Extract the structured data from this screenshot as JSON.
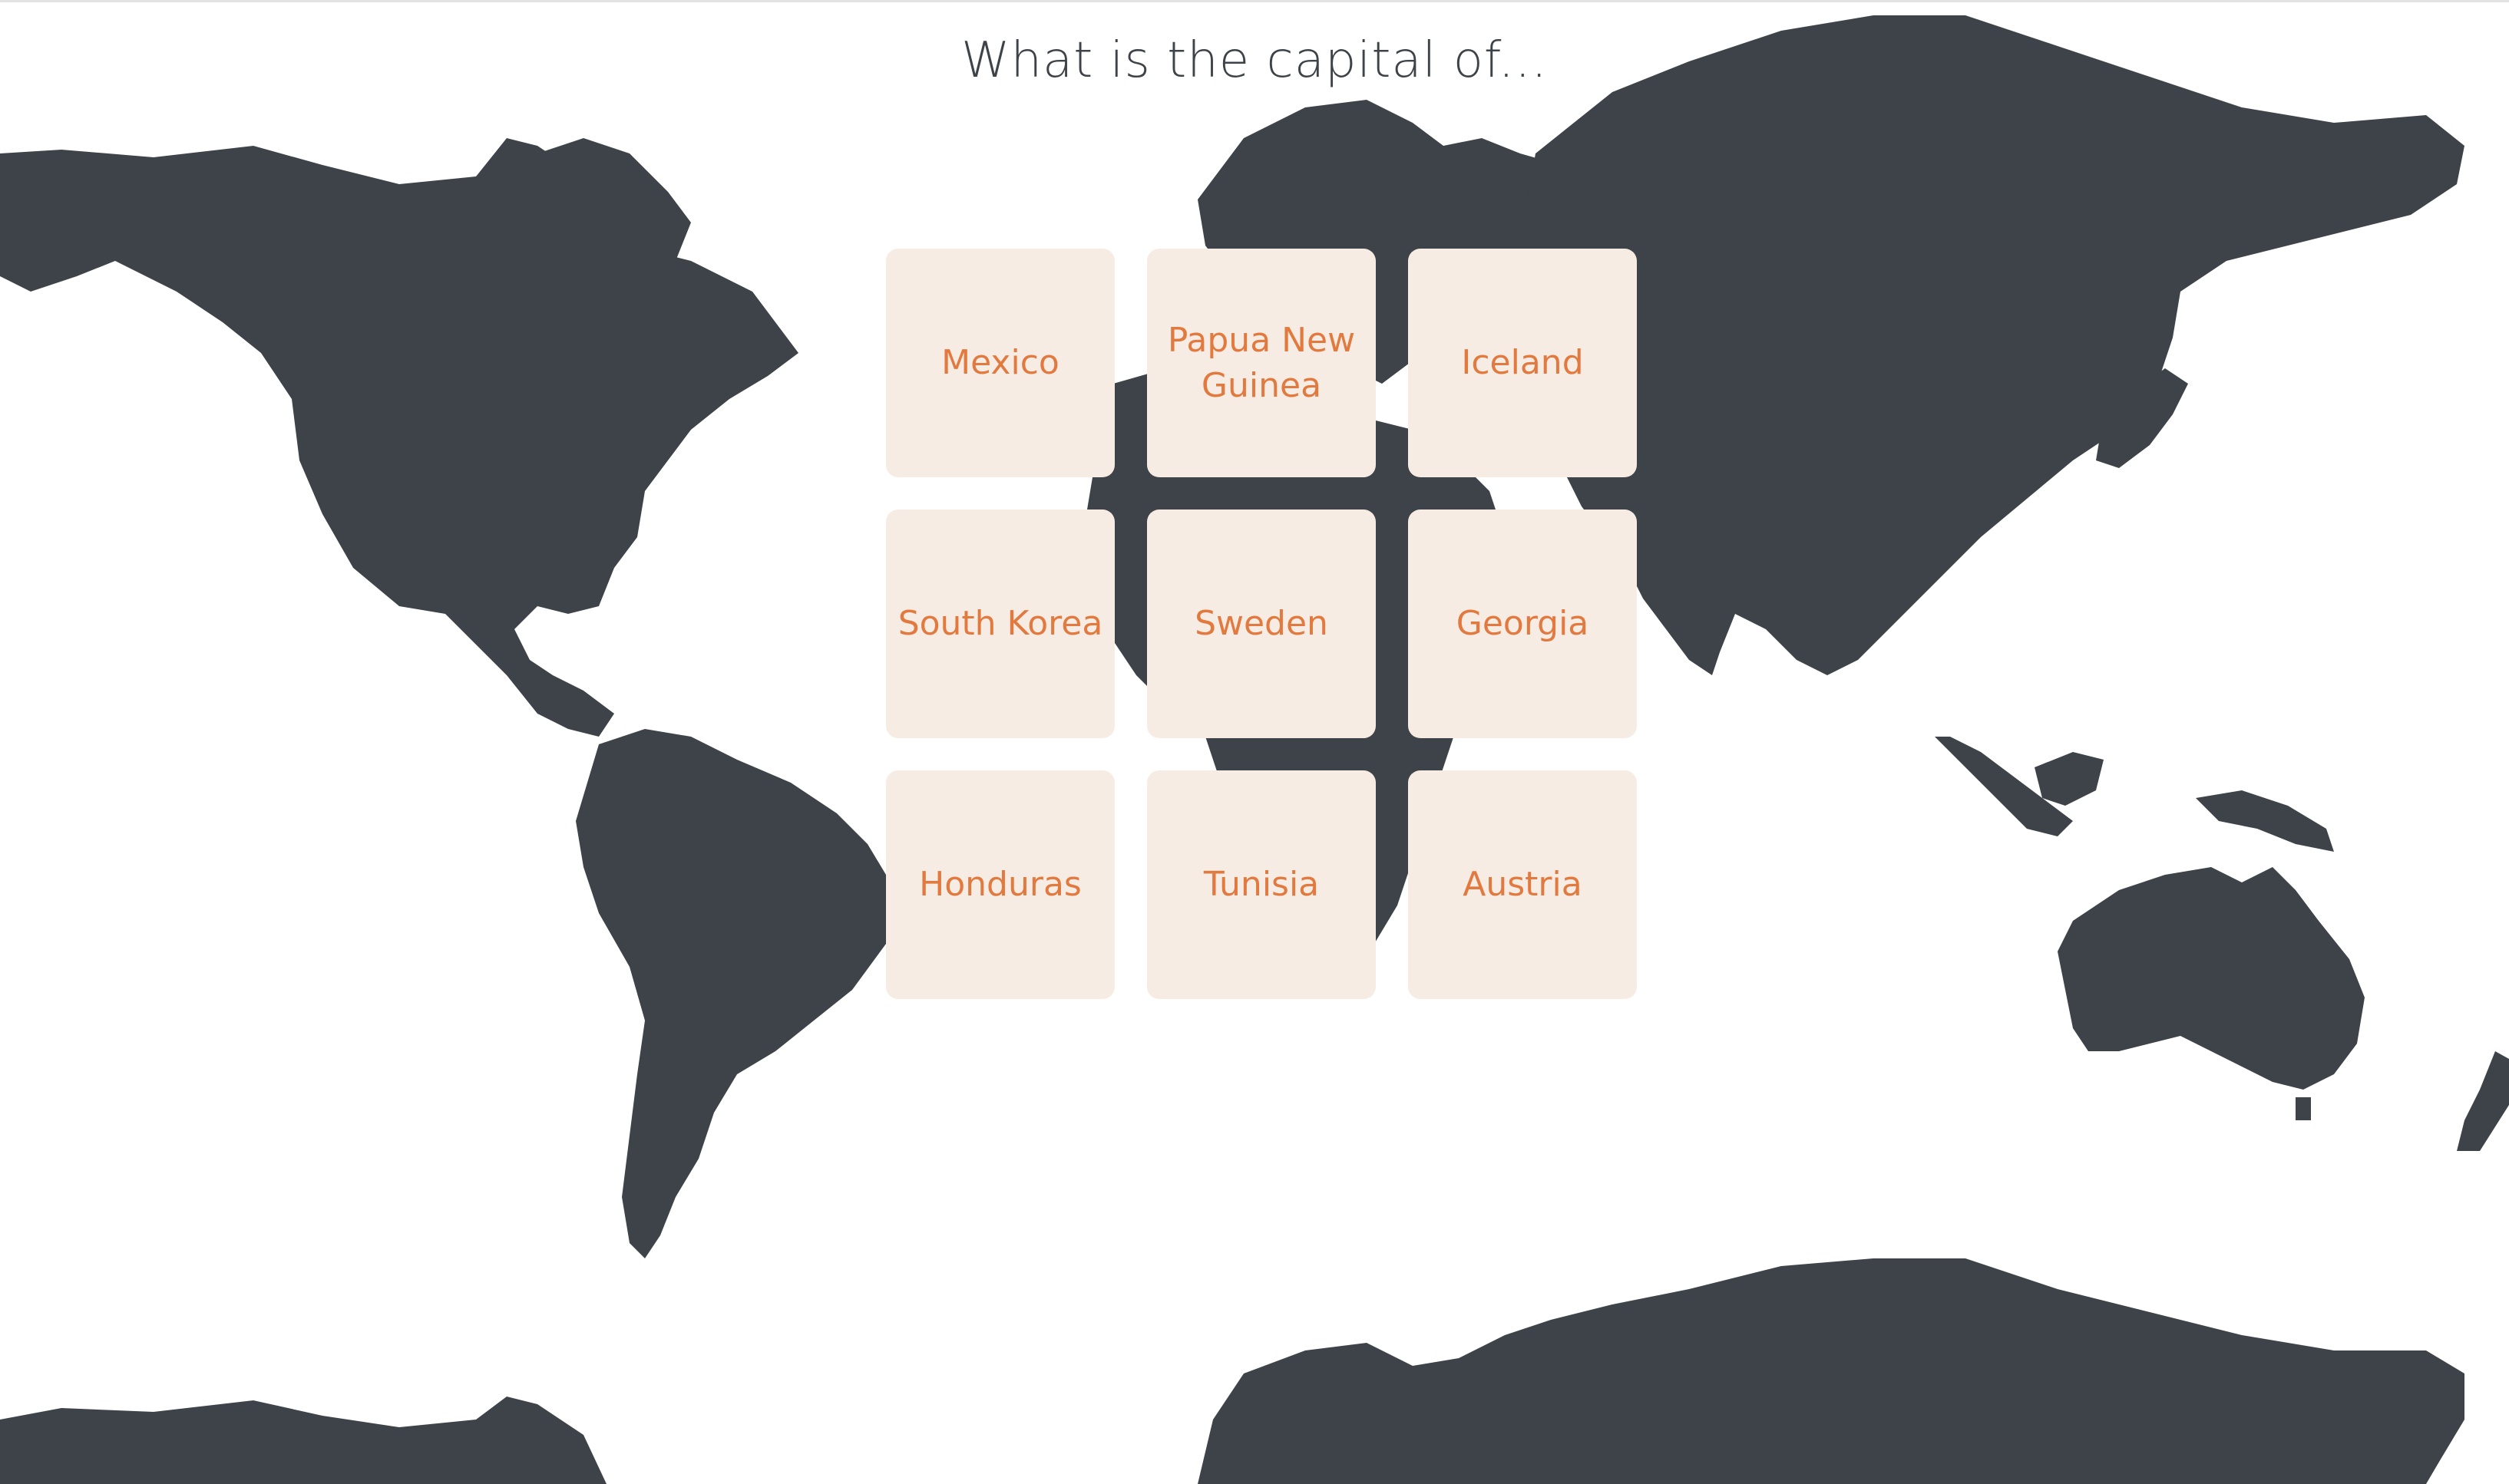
{
  "question": "What is the capital of...",
  "answers": [
    {
      "label": "Mexico"
    },
    {
      "label": "Papua New Guinea"
    },
    {
      "label": "Iceland"
    },
    {
      "label": "South Korea"
    },
    {
      "label": "Sweden"
    },
    {
      "label": "Georgia"
    },
    {
      "label": "Honduras"
    },
    {
      "label": "Tunisia"
    },
    {
      "label": "Austria"
    }
  ],
  "colors": {
    "map": "#3d4349",
    "tile_background": "#f6ece3",
    "tile_text": "#e27a3f",
    "question_text": "#3d4349"
  }
}
